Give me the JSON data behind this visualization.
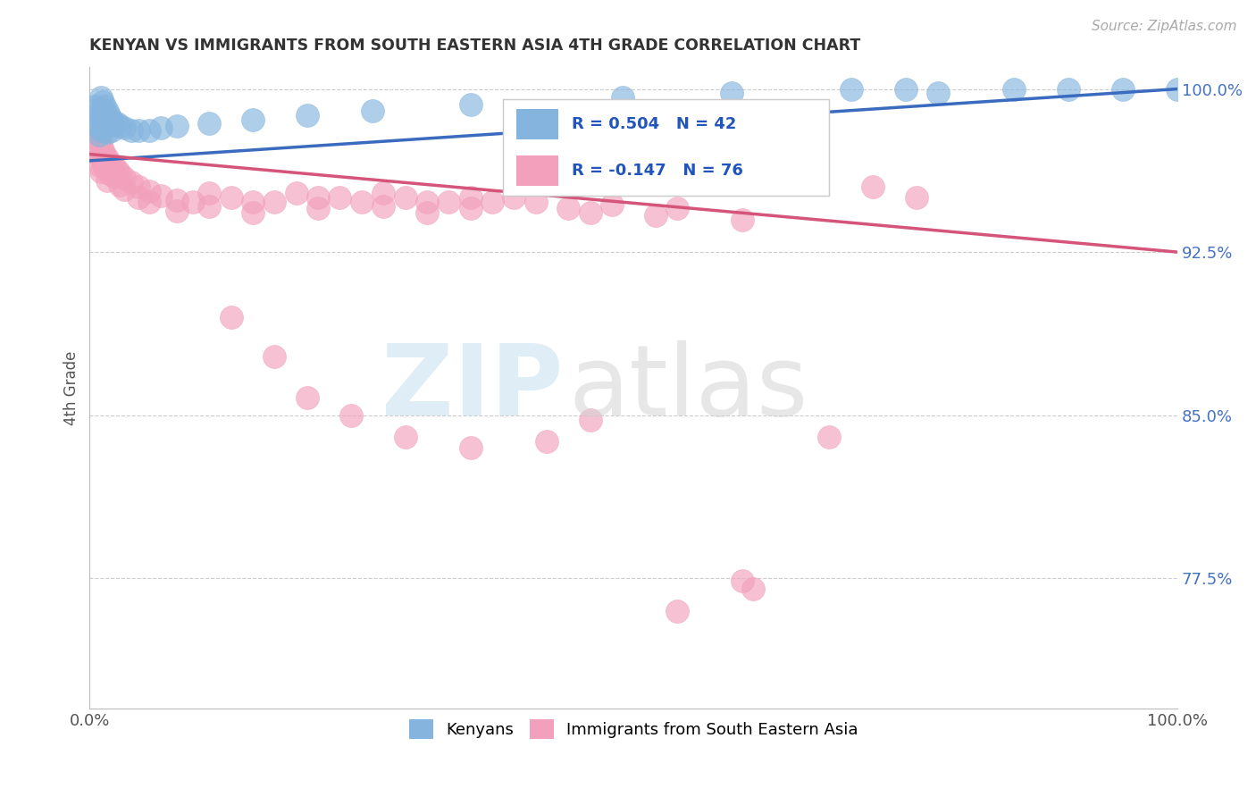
{
  "title": "KENYAN VS IMMIGRANTS FROM SOUTH EASTERN ASIA 4TH GRADE CORRELATION CHART",
  "source": "Source: ZipAtlas.com",
  "ylabel": "4th Grade",
  "xlim": [
    0.0,
    1.0
  ],
  "ylim": [
    0.715,
    1.01
  ],
  "yticks": [
    0.775,
    0.85,
    0.925,
    1.0
  ],
  "ytick_labels": [
    "77.5%",
    "85.0%",
    "92.5%",
    "100.0%"
  ],
  "xticks": [
    0.0,
    1.0
  ],
  "xtick_labels": [
    "0.0%",
    "100.0%"
  ],
  "blue_color": "#85b5de",
  "pink_color": "#f2a0bb",
  "trendline_blue": "#3a6bbf",
  "trendline_pink": "#d4547a",
  "background": "#ffffff",
  "blue_trend_x": [
    0.0,
    1.0
  ],
  "blue_trend_y": [
    0.967,
    1.0
  ],
  "pink_trend_x": [
    0.0,
    1.0
  ],
  "pink_trend_y": [
    0.97,
    0.925
  ],
  "blue_scatter": [
    [
      0.005,
      0.992
    ],
    [
      0.007,
      0.988
    ],
    [
      0.008,
      0.983
    ],
    [
      0.009,
      0.979
    ],
    [
      0.01,
      0.996
    ],
    [
      0.01,
      0.991
    ],
    [
      0.01,
      0.986
    ],
    [
      0.01,
      0.981
    ],
    [
      0.012,
      0.994
    ],
    [
      0.012,
      0.989
    ],
    [
      0.012,
      0.984
    ],
    [
      0.014,
      0.992
    ],
    [
      0.014,
      0.987
    ],
    [
      0.016,
      0.99
    ],
    [
      0.016,
      0.985
    ],
    [
      0.016,
      0.98
    ],
    [
      0.018,
      0.988
    ],
    [
      0.018,
      0.983
    ],
    [
      0.02,
      0.986
    ],
    [
      0.02,
      0.981
    ],
    [
      0.022,
      0.984
    ],
    [
      0.025,
      0.984
    ],
    [
      0.028,
      0.983
    ],
    [
      0.032,
      0.982
    ],
    [
      0.038,
      0.981
    ],
    [
      0.045,
      0.981
    ],
    [
      0.055,
      0.981
    ],
    [
      0.065,
      0.982
    ],
    [
      0.08,
      0.983
    ],
    [
      0.11,
      0.984
    ],
    [
      0.15,
      0.986
    ],
    [
      0.2,
      0.988
    ],
    [
      0.26,
      0.99
    ],
    [
      0.35,
      0.993
    ],
    [
      0.49,
      0.996
    ],
    [
      0.59,
      0.998
    ],
    [
      0.7,
      1.0
    ],
    [
      0.75,
      1.0
    ],
    [
      0.78,
      0.998
    ],
    [
      0.85,
      1.0
    ],
    [
      0.9,
      1.0
    ],
    [
      0.95,
      1.0
    ],
    [
      1.0,
      1.0
    ]
  ],
  "pink_scatter": [
    [
      0.005,
      0.978
    ],
    [
      0.007,
      0.974
    ],
    [
      0.009,
      0.97
    ],
    [
      0.009,
      0.965
    ],
    [
      0.01,
      0.975
    ],
    [
      0.01,
      0.968
    ],
    [
      0.01,
      0.962
    ],
    [
      0.012,
      0.972
    ],
    [
      0.012,
      0.966
    ],
    [
      0.014,
      0.97
    ],
    [
      0.014,
      0.964
    ],
    [
      0.016,
      0.968
    ],
    [
      0.016,
      0.963
    ],
    [
      0.016,
      0.958
    ],
    [
      0.018,
      0.966
    ],
    [
      0.018,
      0.961
    ],
    [
      0.02,
      0.963
    ],
    [
      0.022,
      0.965
    ],
    [
      0.022,
      0.96
    ],
    [
      0.025,
      0.963
    ],
    [
      0.028,
      0.961
    ],
    [
      0.028,
      0.956
    ],
    [
      0.032,
      0.959
    ],
    [
      0.032,
      0.954
    ],
    [
      0.038,
      0.957
    ],
    [
      0.045,
      0.955
    ],
    [
      0.045,
      0.95
    ],
    [
      0.055,
      0.953
    ],
    [
      0.055,
      0.948
    ],
    [
      0.065,
      0.951
    ],
    [
      0.08,
      0.949
    ],
    [
      0.08,
      0.944
    ],
    [
      0.095,
      0.948
    ],
    [
      0.11,
      0.952
    ],
    [
      0.11,
      0.946
    ],
    [
      0.13,
      0.95
    ],
    [
      0.15,
      0.948
    ],
    [
      0.15,
      0.943
    ],
    [
      0.17,
      0.948
    ],
    [
      0.19,
      0.952
    ],
    [
      0.21,
      0.95
    ],
    [
      0.21,
      0.945
    ],
    [
      0.23,
      0.95
    ],
    [
      0.25,
      0.948
    ],
    [
      0.27,
      0.952
    ],
    [
      0.27,
      0.946
    ],
    [
      0.29,
      0.95
    ],
    [
      0.31,
      0.948
    ],
    [
      0.31,
      0.943
    ],
    [
      0.33,
      0.948
    ],
    [
      0.35,
      0.95
    ],
    [
      0.35,
      0.945
    ],
    [
      0.37,
      0.948
    ],
    [
      0.39,
      0.95
    ],
    [
      0.41,
      0.948
    ],
    [
      0.44,
      0.945
    ],
    [
      0.46,
      0.943
    ],
    [
      0.48,
      0.947
    ],
    [
      0.52,
      0.942
    ],
    [
      0.54,
      0.945
    ],
    [
      0.6,
      0.94
    ],
    [
      0.65,
      0.96
    ],
    [
      0.72,
      0.955
    ],
    [
      0.76,
      0.95
    ],
    [
      0.68,
      0.84
    ],
    [
      0.61,
      0.77
    ],
    [
      0.13,
      0.895
    ],
    [
      0.17,
      0.877
    ],
    [
      0.2,
      0.858
    ],
    [
      0.24,
      0.85
    ],
    [
      0.29,
      0.84
    ],
    [
      0.35,
      0.835
    ],
    [
      0.42,
      0.838
    ],
    [
      0.46,
      0.848
    ],
    [
      0.54,
      0.76
    ],
    [
      0.6,
      0.774
    ]
  ]
}
